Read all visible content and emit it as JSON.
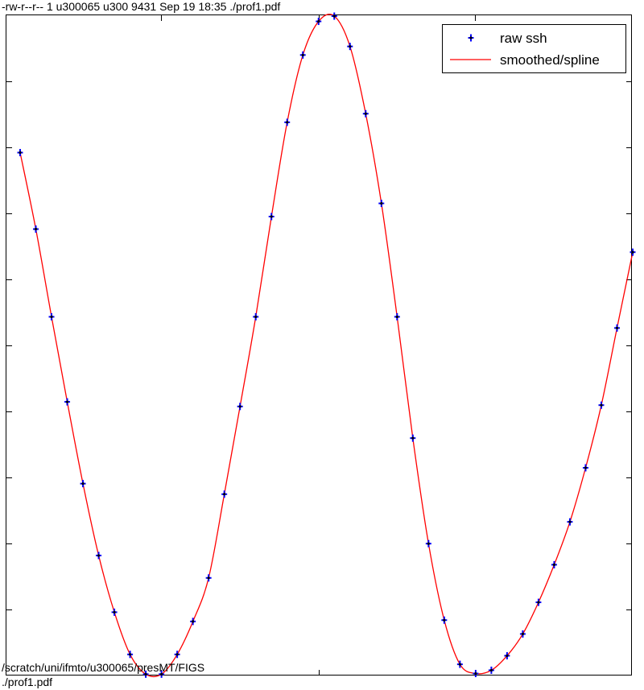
{
  "header": {
    "file_info": "-rw-r--r-- 1 u300065 u300 9431 Sep 19 18:35 ./prof1.pdf"
  },
  "footer": {
    "path_line1": "/scratch/uni/ifmto/u300065/presMT/FIGS",
    "path_line2": "./prof1.pdf"
  },
  "chart_data": {
    "type": "line",
    "title": "",
    "xlabel": "",
    "ylabel": "",
    "xlim": [
      0,
      40
    ],
    "ylim": [
      0,
      1
    ],
    "grid": false,
    "legend_position": "top-right",
    "legend": [
      {
        "label": "raw ssh",
        "marker": "star",
        "color": "#0000ff"
      },
      {
        "label": "smoothed/spline",
        "marker": "line",
        "color": "#ff0000"
      }
    ],
    "series": [
      {
        "name": "raw ssh",
        "style": "markers",
        "color": "#0000ff",
        "x": [
          1,
          2,
          3,
          4,
          5,
          6,
          7,
          8,
          9,
          10,
          11,
          12,
          13,
          14,
          15,
          16,
          17,
          18,
          19,
          20,
          21,
          22,
          23,
          24,
          25,
          26,
          27,
          28,
          29,
          30,
          31,
          32,
          33,
          34,
          35,
          36,
          37,
          38,
          39,
          40
        ],
        "y": [
          0.793,
          0.677,
          0.544,
          0.415,
          0.291,
          0.182,
          0.096,
          0.032,
          0.002,
          0.002,
          0.032,
          0.082,
          0.148,
          0.275,
          0.408,
          0.544,
          0.696,
          0.839,
          0.941,
          0.992,
          1.0,
          0.954,
          0.852,
          0.716,
          0.544,
          0.36,
          0.2,
          0.084,
          0.017,
          0.003,
          0.008,
          0.03,
          0.063,
          0.111,
          0.168,
          0.233,
          0.315,
          0.41,
          0.527,
          0.642
        ]
      },
      {
        "name": "smoothed/spline",
        "style": "line",
        "color": "#ff0000",
        "x": [
          1,
          2,
          3,
          4,
          5,
          6,
          7,
          8,
          9,
          10,
          11,
          12,
          13,
          14,
          15,
          16,
          17,
          18,
          19,
          20,
          21,
          22,
          23,
          24,
          25,
          26,
          27,
          28,
          29,
          30,
          31,
          32,
          33,
          34,
          35,
          36,
          37,
          38,
          39,
          40
        ],
        "y": [
          0.793,
          0.677,
          0.544,
          0.415,
          0.291,
          0.182,
          0.096,
          0.032,
          0.002,
          0.002,
          0.032,
          0.082,
          0.148,
          0.275,
          0.408,
          0.544,
          0.696,
          0.839,
          0.941,
          0.992,
          1.0,
          0.954,
          0.852,
          0.716,
          0.544,
          0.36,
          0.2,
          0.084,
          0.017,
          0.003,
          0.008,
          0.03,
          0.063,
          0.111,
          0.168,
          0.233,
          0.315,
          0.41,
          0.527,
          0.642
        ]
      }
    ]
  }
}
